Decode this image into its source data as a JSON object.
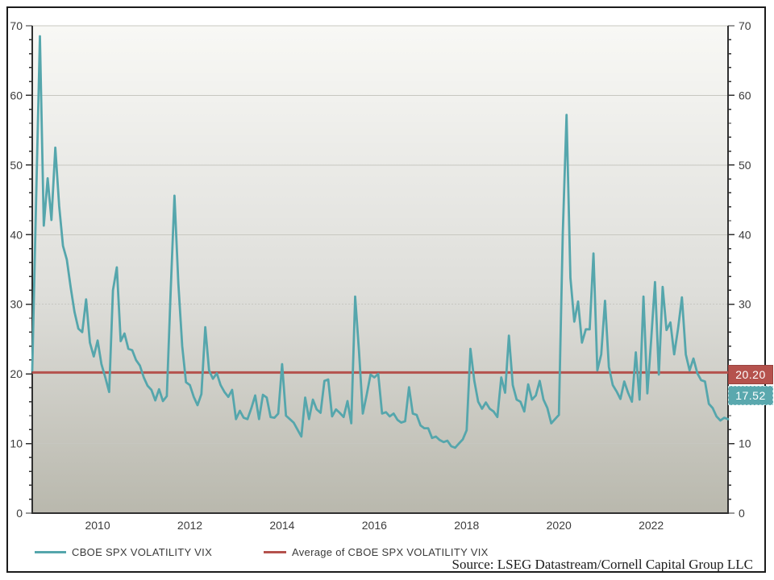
{
  "source": {
    "text": "Source: LSEG Datastream/Cornell Capital Group LLC"
  },
  "legend": {
    "series_label": "CBOE SPX VOLATILITY VIX",
    "average_label": "Average of CBOE SPX VOLATILITY VIX"
  },
  "chart_data": {
    "type": "line",
    "title": "",
    "xlabel": "",
    "ylabel": "",
    "ylim": [
      0,
      70
    ],
    "y_tick_step": 10,
    "y_minor_tick_step": 2,
    "grid": "horizontal",
    "dashed_gridline_value": 30,
    "legend_position": "bottom",
    "x_interval": "monthly",
    "x_start": "2008-08",
    "x_end": "2023-09",
    "x_tick_years": [
      "2010",
      "2012",
      "2014",
      "2016",
      "2018",
      "2020",
      "2022"
    ],
    "x_tick_month_indices": [
      17,
      41,
      65,
      89,
      113,
      137,
      161
    ],
    "series": [
      {
        "name": "CBOE SPX VOLATILITY VIX",
        "color": "#55a6ac",
        "values": [
          20.5,
          45,
          68.5,
          41.3,
          48.1,
          42.1,
          52.5,
          44.1,
          38.4,
          36.4,
          32.4,
          28.9,
          26.5,
          26,
          30.7,
          24.5,
          22.5,
          24.8,
          21.4,
          19.5,
          17.4,
          32,
          35.3,
          24.7,
          25.8,
          23.6,
          23.4,
          22,
          21.2,
          19.5,
          18.3,
          17.7,
          16.2,
          17.8,
          16.1,
          16.8,
          31.6,
          45.6,
          33,
          24,
          18.8,
          18.4,
          16.7,
          15.5,
          17.1,
          26.7,
          20.5,
          19.3,
          20.1,
          18.4,
          17.4,
          16.7,
          17.7,
          13.5,
          14.7,
          13.7,
          13.5,
          15.1,
          16.9,
          13.5,
          17,
          16.6,
          13.8,
          13.7,
          14.3,
          21.4,
          14,
          13.5,
          13,
          12,
          11,
          16.6,
          13.5,
          16.3,
          14.9,
          14.4,
          19,
          19.2,
          13.9,
          14.9,
          14.4,
          13.8,
          16.1,
          12.9,
          31.1,
          23.2,
          14.3,
          17,
          19.9,
          19.5,
          20,
          14.3,
          14.5,
          13.9,
          14.3,
          13.4,
          13,
          13.2,
          18.1,
          14.3,
          14.1,
          12.6,
          12.2,
          12.2,
          10.8,
          11,
          10.5,
          10.2,
          10.4,
          9.6,
          9.4,
          10,
          10.6,
          11.9,
          23.6,
          19,
          16,
          15,
          15.9,
          15,
          14.6,
          13.8,
          19.5,
          17.3,
          25.5,
          18.4,
          16.3,
          16,
          14.6,
          18.5,
          16.3,
          16.9,
          19,
          16.3,
          15.1,
          12.9,
          13.5,
          14.1,
          40.1,
          57.2,
          33.8,
          27.5,
          30.4,
          24.5,
          26.4,
          26.4,
          37.3,
          20.5,
          22.8,
          30.5,
          21,
          18.4,
          17.5,
          16.4,
          18.9,
          17.3,
          16,
          23.1,
          16.3,
          31.1,
          17.2,
          24.8,
          33.2,
          19.9,
          32.5,
          26.3,
          27.4,
          22.8,
          26.5,
          31,
          22.8,
          20.5,
          22.2,
          20.1,
          19.1,
          18.9,
          15.7,
          15.1,
          13.9,
          13.3,
          13.7,
          13.5
        ]
      }
    ],
    "average_line": {
      "name": "Average of CBOE SPX VOLATILITY VIX",
      "value": 20.2,
      "label": "20.20",
      "color": "#b5524d"
    },
    "latest_label": {
      "text": "17.52",
      "value": 17.52,
      "bg": "#5aa8ae"
    },
    "colors": {
      "plot_bg_top": "#f8f8f5",
      "plot_bg_bottom": "#b9b8ad",
      "gridline": "#c7c7c0",
      "axis": "#303030",
      "tick_text": "#3c3c3c"
    }
  }
}
